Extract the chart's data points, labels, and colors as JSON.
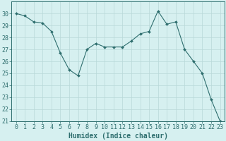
{
  "x": [
    0,
    1,
    2,
    3,
    4,
    5,
    6,
    7,
    8,
    9,
    10,
    11,
    12,
    13,
    14,
    15,
    16,
    17,
    18,
    19,
    20,
    21,
    22,
    23
  ],
  "y": [
    30.0,
    29.8,
    29.3,
    29.2,
    28.5,
    26.7,
    25.3,
    24.8,
    27.0,
    27.5,
    27.2,
    27.2,
    27.2,
    27.7,
    28.3,
    28.5,
    30.2,
    29.1,
    29.3,
    27.0,
    26.0,
    25.0,
    22.8,
    21.0
  ],
  "line_color": "#2e6e6e",
  "marker": "D",
  "marker_size": 2.0,
  "bg_color": "#d6f0f0",
  "grid_color": "#b8d8d8",
  "xlabel": "Humidex (Indice chaleur)",
  "ylim": [
    21,
    31
  ],
  "xlim": [
    -0.5,
    23.5
  ],
  "yticks": [
    21,
    22,
    23,
    24,
    25,
    26,
    27,
    28,
    29,
    30
  ],
  "xticks": [
    0,
    1,
    2,
    3,
    4,
    5,
    6,
    7,
    8,
    9,
    10,
    11,
    12,
    13,
    14,
    15,
    16,
    17,
    18,
    19,
    20,
    21,
    22,
    23
  ],
  "tick_color": "#2e6e6e",
  "label_color": "#2e6e6e",
  "xlabel_fontsize": 7,
  "tick_fontsize": 6
}
